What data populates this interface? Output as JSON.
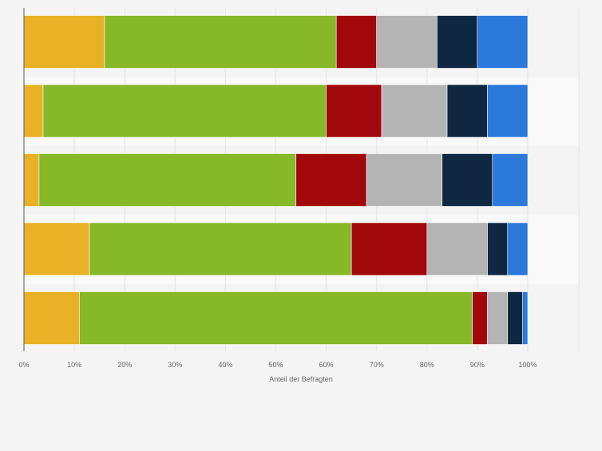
{
  "chart_data": {
    "type": "bar",
    "orientation": "horizontal",
    "stacked": true,
    "title": "",
    "xlabel": "Anteil der Befragten",
    "ylabel": "",
    "xlim": [
      0,
      100
    ],
    "x_ticks": [
      "0%",
      "10%",
      "20%",
      "30%",
      "40%",
      "50%",
      "60%",
      "70%",
      "80%",
      "90%",
      "100%"
    ],
    "grid": true,
    "legend": "none",
    "categories": [
      "",
      "",
      "",
      "",
      ""
    ],
    "series": [
      {
        "color": "#e9b125",
        "values": [
          16,
          3.8,
          3,
          13,
          11
        ]
      },
      {
        "color": "#86b827",
        "values": [
          46,
          56.2,
          51,
          52,
          78
        ]
      },
      {
        "color": "#a0080b",
        "values": [
          8,
          11,
          14,
          15,
          3
        ]
      },
      {
        "color": "#b4b4b4",
        "values": [
          12,
          13,
          15,
          12,
          4
        ]
      },
      {
        "color": "#0f2740",
        "values": [
          8,
          8,
          10,
          4,
          3
        ]
      },
      {
        "color": "#2b79da",
        "values": [
          10,
          8,
          7,
          4,
          1
        ]
      }
    ]
  }
}
